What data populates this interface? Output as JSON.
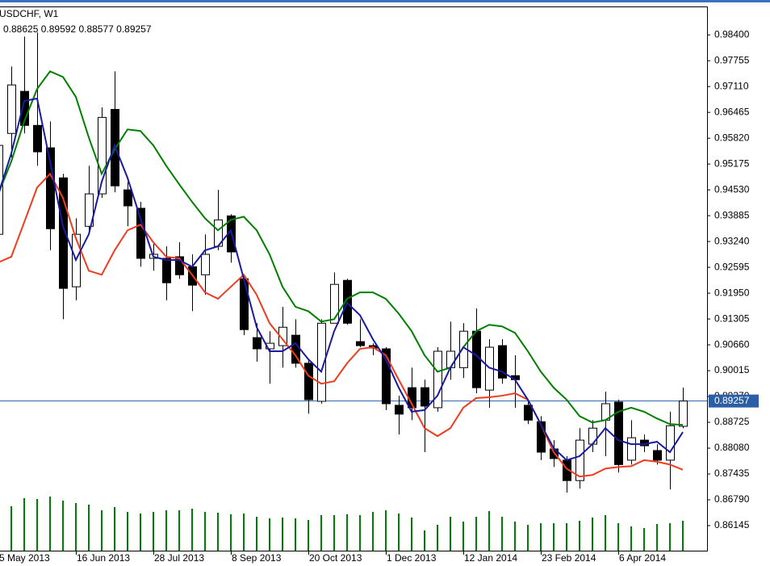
{
  "chart_data": {
    "type": "candlestick",
    "title": "USDCHF, W1",
    "categories": [
      "5 May 2013",
      null,
      null,
      null,
      null,
      null,
      "16 Jun 2013",
      null,
      null,
      null,
      null,
      null,
      "28 Jul 2013",
      null,
      null,
      null,
      null,
      null,
      "8 Sep 2013",
      null,
      null,
      null,
      null,
      null,
      "20 Oct 2013",
      null,
      null,
      null,
      null,
      null,
      "1 Dec 2013",
      null,
      null,
      null,
      null,
      null,
      "12 Jan 2014",
      null,
      null,
      null,
      null,
      null,
      "23 Feb 2014",
      null,
      null,
      null,
      null,
      null,
      "6 Apr 2014",
      null,
      null,
      null,
      null,
      null
    ],
    "open": [
      0.9342,
      0.9594,
      0.9699,
      0.9614,
      0.9558,
      0.9483,
      0.9211,
      0.9362,
      0.9443,
      0.9654,
      0.9453,
      0.9407,
      0.9282,
      0.9282,
      0.9286,
      0.9261,
      0.9241,
      0.9312,
      0.9388,
      0.9231,
      0.9084,
      0.9056,
      0.9064,
      0.909,
      0.902,
      0.8925,
      0.912,
      0.9227,
      0.9074,
      0.9064,
      0.9056,
      0.8915,
      0.8959,
      0.8959,
      0.8909,
      0.9009,
      0.9009,
      0.91,
      0.8953,
      0.9064,
      0.8989,
      0.8915,
      0.8874,
      0.8806,
      0.8778,
      0.8727,
      0.8818,
      0.8878,
      0.8923,
      0.8778,
      0.8828,
      0.8802,
      0.8778,
      0.88625
    ],
    "high": [
      0.9584,
      0.9761,
      0.9836,
      0.9846,
      0.9624,
      0.9493,
      0.9382,
      0.9513,
      0.9659,
      0.9749,
      0.9473,
      0.9423,
      0.9322,
      0.9312,
      0.9322,
      0.9292,
      0.9342,
      0.9453,
      0.9392,
      0.9241,
      0.912,
      0.91,
      0.9161,
      0.913,
      0.903,
      0.913,
      0.9247,
      0.9231,
      0.913,
      0.907,
      0.906,
      0.8939,
      0.9009,
      0.8979,
      0.906,
      0.9124,
      0.912,
      0.9157,
      0.908,
      0.908,
      0.904,
      0.8929,
      0.8888,
      0.8828,
      0.8788,
      0.8858,
      0.8878,
      0.8949,
      0.8929,
      0.8878,
      0.8842,
      0.8818,
      0.8899,
      0.89592
    ],
    "low": [
      0.9332,
      0.9534,
      0.9594,
      0.9513,
      0.9302,
      0.913,
      0.9177,
      0.9342,
      0.9433,
      0.9447,
      0.9362,
      0.9261,
      0.9251,
      0.9177,
      0.9231,
      0.915,
      0.9191,
      0.9302,
      0.9271,
      0.909,
      0.9024,
      0.8969,
      0.9009,
      0.9009,
      0.8894,
      0.8919,
      0.912,
      0.9116,
      0.906,
      0.904,
      0.8903,
      0.8842,
      0.8878,
      0.8798,
      0.8899,
      0.8979,
      0.8983,
      0.8945,
      0.8909,
      0.8969,
      0.8909,
      0.8868,
      0.8778,
      0.8761,
      0.8697,
      0.8707,
      0.8798,
      0.8788,
      0.8747,
      0.8767,
      0.8798,
      0.8767,
      0.8705,
      0.88577
    ],
    "close": [
      0.9564,
      0.9715,
      0.9614,
      0.9548,
      0.9356,
      0.9207,
      0.9342,
      0.9443,
      0.9634,
      0.9463,
      0.9413,
      0.9282,
      0.9292,
      0.9221,
      0.9241,
      0.9215,
      0.9292,
      0.9378,
      0.9298,
      0.9104,
      0.9056,
      0.907,
      0.911,
      0.902,
      0.8929,
      0.912,
      0.9217,
      0.912,
      0.9064,
      0.9058,
      0.8919,
      0.8893,
      0.8909,
      0.8913,
      0.905,
      0.905,
      0.91,
      0.8959,
      0.906,
      0.8983,
      0.8979,
      0.8878,
      0.8798,
      0.8782,
      0.8727,
      0.8828,
      0.8858,
      0.8919,
      0.8767,
      0.8834,
      0.8814,
      0.8778,
      0.8864,
      0.89257
    ],
    "up_color": "#ffffff",
    "down_color": "#000000",
    "lines": [
      {
        "color": "#008000",
        "values": [
          0.9443,
          0.9524,
          0.9624,
          0.9705,
          0.9749,
          0.9735,
          0.9685,
          0.9584,
          0.9493,
          0.9554,
          0.9604,
          0.96,
          0.9564,
          0.9513,
          0.9467,
          0.9423,
          0.9382,
          0.9352,
          0.9378,
          0.9386,
          0.9352,
          0.9292,
          0.9211,
          0.9161,
          0.915,
          0.9124,
          0.913,
          0.9181,
          0.9197,
          0.9197,
          0.9181,
          0.9144,
          0.91,
          0.904,
          0.8999,
          0.9009,
          0.906,
          0.91,
          0.9116,
          0.9112,
          0.9096,
          0.905,
          0.8999,
          0.8959,
          0.8929,
          0.8888,
          0.8872,
          0.8878,
          0.8899,
          0.8909,
          0.8899,
          0.8882,
          0.8868,
          0.8866
        ]
      },
      {
        "color": "#f03c1e",
        "values": [
          0.9272,
          0.9286,
          0.9372,
          0.9459,
          0.9493,
          0.9433,
          0.9332,
          0.9251,
          0.9241,
          0.9302,
          0.9352,
          0.9366,
          0.9322,
          0.9286,
          0.9282,
          0.9241,
          0.9197,
          0.9181,
          0.9211,
          0.9241,
          0.9191,
          0.912,
          0.908,
          0.904,
          0.8989,
          0.8969,
          0.8975,
          0.902,
          0.9056,
          0.906,
          0.904,
          0.8979,
          0.8919,
          0.8858,
          0.8838,
          0.8858,
          0.8909,
          0.8933,
          0.8935,
          0.8939,
          0.8945,
          0.8929,
          0.8868,
          0.8798,
          0.8757,
          0.8737,
          0.8741,
          0.8757,
          0.8761,
          0.8763,
          0.8778,
          0.8774,
          0.8767,
          0.8754
        ]
      },
      {
        "color": "#1a1aa0",
        "values": [
          0.9443,
          0.9544,
          0.9675,
          0.9681,
          0.9524,
          0.9362,
          0.9278,
          0.9342,
          0.9473,
          0.9564,
          0.9483,
          0.9382,
          0.9286,
          0.9278,
          0.9278,
          0.9261,
          0.9302,
          0.9312,
          0.9352,
          0.9231,
          0.911,
          0.905,
          0.905,
          0.907,
          0.903,
          0.8999,
          0.91,
          0.9171,
          0.914,
          0.908,
          0.903,
          0.8959,
          0.8899,
          0.8903,
          0.8939,
          0.9009,
          0.906,
          0.904,
          0.9009,
          0.8999,
          0.8979,
          0.8929,
          0.8868,
          0.8808,
          0.8778,
          0.8788,
          0.8818,
          0.8858,
          0.8828,
          0.8818,
          0.8818,
          0.8824,
          0.8798,
          0.8848
        ]
      }
    ],
    "volumes": {
      "color": "#008000",
      "values": [
        null,
        55,
        65,
        64,
        67,
        62,
        59,
        57,
        50,
        54,
        48,
        46,
        48,
        50,
        50,
        52,
        48,
        47,
        45,
        46,
        42,
        40,
        41,
        40,
        38,
        44,
        44,
        45,
        44,
        48,
        50,
        46,
        41,
        25,
        32,
        42,
        36,
        42,
        49,
        42,
        36,
        32,
        34,
        34,
        34,
        37,
        41,
        44,
        34,
        30,
        28,
        33,
        34,
        37
      ]
    },
    "price_line_color": "#2a5fa8",
    "ylim": [
      0.8552,
      0.9911
    ],
    "yticks": [
      {
        "value": 0.984,
        "label": "0.98400"
      },
      0.97755,
      {
        "value": 0.9711,
        "label": "0.97110"
      },
      0.96465,
      {
        "value": 0.9582,
        "label": "0.95820"
      },
      0.95175,
      {
        "value": 0.9453,
        "label": "0.94530"
      },
      0.93885,
      {
        "value": 0.9324,
        "label": "0.93240"
      },
      0.92595,
      {
        "value": 0.9195,
        "label": "0.91950"
      },
      0.91305,
      {
        "value": 0.9066,
        "label": "0.90660"
      },
      0.90015,
      {
        "value": 0.8937,
        "label": "0.89370"
      },
      0.88725,
      {
        "value": 0.8808,
        "label": "0.88080"
      },
      0.87435,
      {
        "value": 0.8679,
        "label": "0.86790"
      },
      0.86145
    ]
  }
}
